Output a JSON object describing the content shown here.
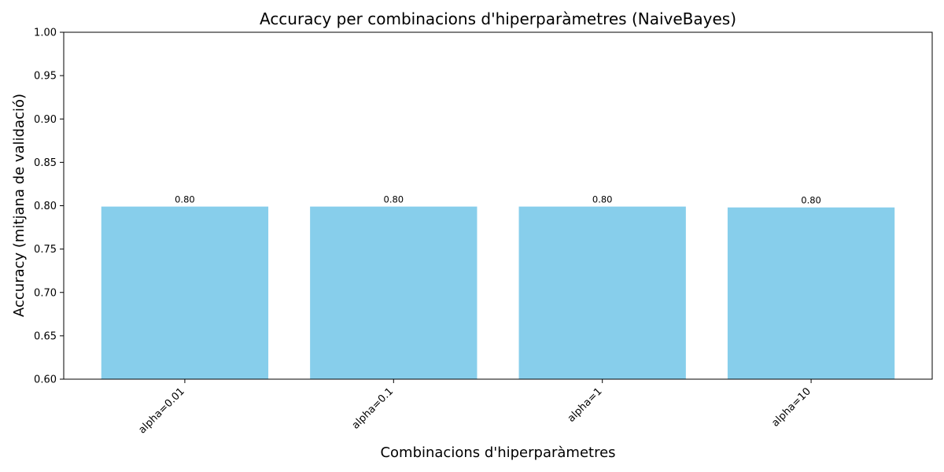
{
  "chart_data": {
    "type": "bar",
    "title": "Accuracy per combinacions d'hiperparàmetres (NaiveBayes)",
    "xlabel": "Combinacions d'hiperparàmetres",
    "ylabel": "Accuracy (mitjana de validació)",
    "categories": [
      "alpha=0.01",
      "alpha=0.1",
      "alpha=1",
      "alpha=10"
    ],
    "values": [
      0.799,
      0.799,
      0.799,
      0.798
    ],
    "value_labels": [
      "0.80",
      "0.80",
      "0.80",
      "0.80"
    ],
    "ylim": [
      0.6,
      1.0
    ],
    "yticks": [
      0.6,
      0.65,
      0.7,
      0.75,
      0.8,
      0.85,
      0.9,
      0.95,
      1.0
    ],
    "ytick_labels": [
      "0.60",
      "0.65",
      "0.70",
      "0.75",
      "0.80",
      "0.85",
      "0.90",
      "0.95",
      "1.00"
    ],
    "bar_color": "#87ceeb",
    "grid": false,
    "legend": "none"
  }
}
